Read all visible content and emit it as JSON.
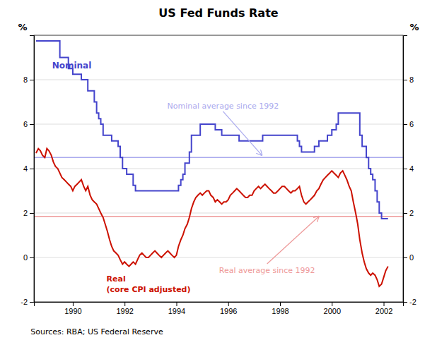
{
  "chart_data": {
    "type": "line",
    "title": "US Fed Funds Rate",
    "source": "Sources: RBA; US Federal Reserve",
    "ylabel": "%",
    "y2label": "%",
    "xlim": [
      1988.5,
      2002.75
    ],
    "xticks": [
      1990,
      1992,
      1994,
      1996,
      1998,
      2000,
      2002
    ],
    "ylim": [
      -2,
      10
    ],
    "yticks": [
      -2,
      0,
      2,
      4,
      6,
      8
    ],
    "y2lim": [
      -2,
      10
    ],
    "y2ticks": [
      -2,
      0,
      2,
      4,
      6,
      8
    ],
    "grid": "y",
    "x": [
      1988.58,
      1988.67,
      1988.75,
      1988.83,
      1988.92,
      1989.0,
      1989.08,
      1989.17,
      1989.25,
      1989.33,
      1989.42,
      1989.5,
      1989.58,
      1989.67,
      1989.75,
      1989.83,
      1989.92,
      1990.0,
      1990.08,
      1990.17,
      1990.25,
      1990.33,
      1990.42,
      1990.5,
      1990.58,
      1990.67,
      1990.75,
      1990.83,
      1990.92,
      1991.0,
      1991.08,
      1991.17,
      1991.25,
      1991.33,
      1991.42,
      1991.5,
      1991.58,
      1991.67,
      1991.75,
      1991.83,
      1991.92,
      1992.0,
      1992.08,
      1992.17,
      1992.25,
      1992.33,
      1992.42,
      1992.5,
      1992.58,
      1992.67,
      1992.75,
      1992.83,
      1992.92,
      1993.0,
      1993.08,
      1993.17,
      1993.25,
      1993.33,
      1993.42,
      1993.5,
      1993.58,
      1993.67,
      1993.75,
      1993.83,
      1993.92,
      1994.0,
      1994.08,
      1994.17,
      1994.25,
      1994.33,
      1994.42,
      1994.5,
      1994.58,
      1994.67,
      1994.75,
      1994.83,
      1994.92,
      1995.0,
      1995.08,
      1995.17,
      1995.25,
      1995.33,
      1995.42,
      1995.5,
      1995.58,
      1995.67,
      1995.75,
      1995.83,
      1995.92,
      1996.0,
      1996.08,
      1996.17,
      1996.25,
      1996.33,
      1996.42,
      1996.5,
      1996.58,
      1996.67,
      1996.75,
      1996.83,
      1996.92,
      1997.0,
      1997.08,
      1997.17,
      1997.25,
      1997.33,
      1997.42,
      1997.5,
      1997.58,
      1997.67,
      1997.75,
      1997.83,
      1997.92,
      1998.0,
      1998.08,
      1998.17,
      1998.25,
      1998.33,
      1998.42,
      1998.5,
      1998.58,
      1998.67,
      1998.75,
      1998.83,
      1998.92,
      1999.0,
      1999.08,
      1999.17,
      1999.25,
      1999.33,
      1999.42,
      1999.5,
      1999.58,
      1999.67,
      1999.75,
      1999.83,
      1999.92,
      2000.0,
      2000.08,
      2000.17,
      2000.25,
      2000.33,
      2000.42,
      2000.5,
      2000.58,
      2000.67,
      2000.75,
      2000.83,
      2000.92,
      2001.0,
      2001.08,
      2001.17,
      2001.25,
      2001.33,
      2001.42,
      2001.5,
      2001.58,
      2001.67,
      2001.75,
      2001.83,
      2001.92,
      2002.0,
      2002.08,
      2002.17
    ],
    "series": [
      {
        "type": "step",
        "color": "#4444cc",
        "values": [
          9.75,
          9.75,
          9.75,
          9.75,
          9.75,
          9.75,
          9.75,
          9.75,
          9.75,
          9.75,
          9.75,
          9.0,
          9.0,
          9.0,
          9.0,
          8.5,
          8.5,
          8.25,
          8.25,
          8.25,
          8.25,
          8.0,
          8.0,
          8.0,
          7.5,
          7.5,
          7.5,
          7.0,
          6.5,
          6.25,
          6.0,
          5.5,
          5.5,
          5.5,
          5.5,
          5.25,
          5.25,
          5.25,
          5.0,
          4.5,
          4.0,
          4.0,
          3.75,
          3.75,
          3.75,
          3.25,
          3.0,
          3.0,
          3.0,
          3.0,
          3.0,
          3.0,
          3.0,
          3.0,
          3.0,
          3.0,
          3.0,
          3.0,
          3.0,
          3.0,
          3.0,
          3.0,
          3.0,
          3.0,
          3.0,
          3.0,
          3.25,
          3.5,
          3.75,
          4.25,
          4.25,
          4.75,
          5.5,
          5.5,
          5.5,
          5.5,
          6.0,
          6.0,
          6.0,
          6.0,
          6.0,
          6.0,
          6.0,
          5.75,
          5.75,
          5.75,
          5.5,
          5.5,
          5.5,
          5.5,
          5.5,
          5.5,
          5.5,
          5.5,
          5.25,
          5.25,
          5.25,
          5.25,
          5.25,
          5.25,
          5.25,
          5.25,
          5.25,
          5.25,
          5.25,
          5.5,
          5.5,
          5.5,
          5.5,
          5.5,
          5.5,
          5.5,
          5.5,
          5.5,
          5.5,
          5.5,
          5.5,
          5.5,
          5.5,
          5.5,
          5.5,
          5.25,
          5.0,
          4.75,
          4.75,
          4.75,
          4.75,
          4.75,
          4.75,
          5.0,
          5.0,
          5.25,
          5.25,
          5.25,
          5.25,
          5.5,
          5.5,
          5.75,
          5.75,
          6.0,
          6.5,
          6.5,
          6.5,
          6.5,
          6.5,
          6.5,
          6.5,
          6.5,
          6.5,
          6.5,
          5.5,
          5.0,
          5.0,
          4.5,
          4.0,
          3.75,
          3.5,
          3.0,
          2.5,
          2.0,
          1.75,
          1.75,
          1.75,
          1.75
        ]
      },
      {
        "type": "line",
        "color": "#cc1100",
        "values": [
          4.7,
          4.9,
          4.8,
          4.6,
          4.5,
          4.9,
          4.8,
          4.6,
          4.3,
          4.1,
          4.0,
          3.8,
          3.6,
          3.5,
          3.4,
          3.3,
          3.2,
          3.0,
          3.2,
          3.3,
          3.4,
          3.5,
          3.2,
          3.0,
          3.2,
          2.8,
          2.6,
          2.5,
          2.4,
          2.2,
          2.0,
          1.8,
          1.5,
          1.2,
          0.8,
          0.5,
          0.3,
          0.2,
          0.1,
          -0.1,
          -0.3,
          -0.2,
          -0.3,
          -0.4,
          -0.3,
          -0.2,
          -0.3,
          -0.1,
          0.1,
          0.2,
          0.1,
          0.0,
          0.0,
          0.1,
          0.2,
          0.3,
          0.2,
          0.1,
          0.0,
          0.1,
          0.2,
          0.3,
          0.2,
          0.1,
          0.0,
          0.1,
          0.5,
          0.8,
          1.0,
          1.3,
          1.5,
          1.8,
          2.2,
          2.5,
          2.7,
          2.8,
          2.9,
          2.8,
          2.9,
          3.0,
          3.0,
          2.8,
          2.7,
          2.5,
          2.6,
          2.5,
          2.4,
          2.5,
          2.5,
          2.6,
          2.8,
          2.9,
          3.0,
          3.1,
          3.0,
          2.9,
          2.8,
          2.7,
          2.7,
          2.8,
          2.8,
          3.0,
          3.1,
          3.2,
          3.1,
          3.2,
          3.3,
          3.2,
          3.1,
          3.0,
          2.9,
          2.9,
          3.0,
          3.1,
          3.2,
          3.2,
          3.1,
          3.0,
          2.9,
          3.0,
          3.0,
          3.1,
          3.2,
          2.8,
          2.5,
          2.4,
          2.5,
          2.6,
          2.7,
          2.8,
          3.0,
          3.1,
          3.3,
          3.5,
          3.6,
          3.7,
          3.8,
          3.9,
          3.8,
          3.7,
          3.6,
          3.8,
          3.9,
          3.7,
          3.5,
          3.2,
          3.0,
          2.5,
          2.0,
          1.5,
          0.8,
          0.2,
          -0.2,
          -0.5,
          -0.7,
          -0.8,
          -0.7,
          -0.8,
          -1.0,
          -1.3,
          -1.2,
          -0.9,
          -0.6,
          -0.4
        ]
      }
    ],
    "reference_lines": [
      {
        "value": 4.5,
        "color": "#aaaaee"
      },
      {
        "value": 1.85,
        "color": "#ee9999"
      }
    ],
    "annotations": [
      {
        "text": "Nominal",
        "x": 1989.2,
        "y": 8.5,
        "color": "#4444cc"
      },
      {
        "text": "Real\n(core CPI adjusted)",
        "x": 1991.3,
        "y": -1.55,
        "color": "#cc1100"
      },
      {
        "text": "Nominal average since 1992",
        "x": 1995.8,
        "y": 6.7,
        "arrow_x": 1997.3,
        "arrow_y": 4.6,
        "color": "#aaaaee"
      },
      {
        "text": "Real average since 1992",
        "x": 1997.5,
        "y": -0.7,
        "arrow_x": 1999.5,
        "arrow_y": 1.85,
        "color": "#ee9999"
      }
    ]
  }
}
